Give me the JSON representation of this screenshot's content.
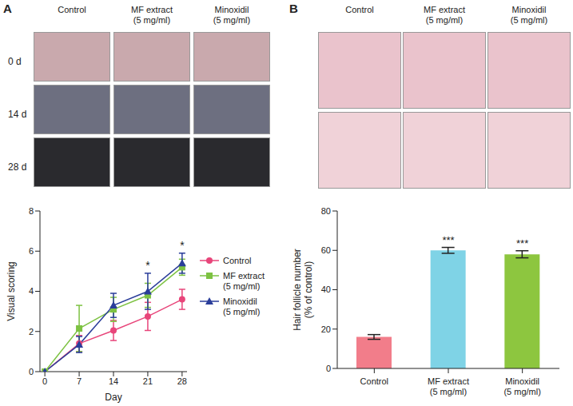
{
  "figure": {
    "panels": [
      {
        "letter": "A",
        "photo_columns": [
          "Control",
          "MF extract (5 mg/ml)",
          "Minoxidil (5 mg/ml)"
        ],
        "photo_rows": [
          "0 d",
          "14 d",
          "28 d"
        ]
      },
      {
        "letter": "B",
        "photo_columns": [
          "Control",
          "MF extract (5 mg/ml)",
          "Minoxidil (5 mg/ml)"
        ]
      }
    ]
  },
  "chart_data": [
    {
      "type": "line",
      "x_label": "Day",
      "y_label": "Visual scoring",
      "x": [
        0,
        7,
        14,
        21,
        28
      ],
      "xlim": [
        -1,
        29
      ],
      "xticks": [
        0,
        7,
        14,
        21,
        28
      ],
      "ylim": [
        0,
        8
      ],
      "yticks": [
        0,
        2,
        4,
        6,
        8
      ],
      "legend": "right",
      "series": [
        {
          "name": "Control",
          "color": "#e8457a",
          "marker": "circle",
          "values": [
            0,
            1.4,
            2.05,
            2.75,
            3.6
          ],
          "errors": [
            0,
            0.4,
            0.5,
            0.7,
            0.5
          ]
        },
        {
          "name": "MF extract (5 mg/ml)",
          "color": "#7dc242",
          "marker": "square",
          "values": [
            0,
            2.15,
            3.1,
            3.8,
            5.2
          ],
          "errors": [
            0,
            1.15,
            0.6,
            0.6,
            0.4
          ]
        },
        {
          "name": "Minoxidil (5 mg/ml)",
          "color": "#2a3d9a",
          "marker": "triangle",
          "values": [
            0,
            1.35,
            3.3,
            4.0,
            5.4
          ],
          "errors": [
            0,
            0.4,
            0.6,
            0.9,
            0.5
          ]
        }
      ],
      "significance": [
        null,
        null,
        null,
        "*",
        "*"
      ]
    },
    {
      "type": "bar",
      "y_label": "Hair follicle number (% of control)",
      "categories": [
        "Control",
        "MF extract (5 mg/ml)",
        "Minoxidil (5 mg/ml)"
      ],
      "values": [
        16,
        60,
        58
      ],
      "errors": [
        1.2,
        1.5,
        1.8
      ],
      "colors": [
        "#f27d8a",
        "#7fd3e6",
        "#8dc63f"
      ],
      "ylim": [
        0,
        80
      ],
      "yticks": [
        0,
        20,
        40,
        60,
        80
      ],
      "significance": [
        null,
        "***",
        "***"
      ]
    }
  ]
}
